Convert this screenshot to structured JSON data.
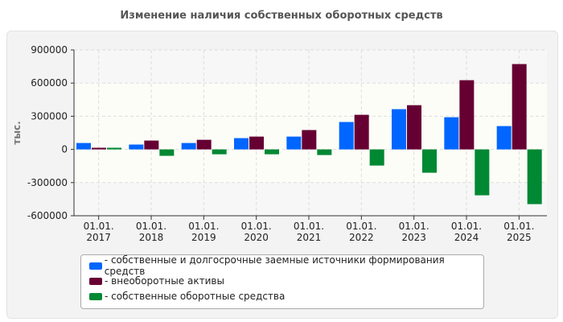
{
  "chart_data": {
    "type": "bar",
    "title": "Изменение наличия собственных оборотных средств",
    "ylabel": "тыс.",
    "categories": [
      "01.01.\n2017",
      "01.01.\n2018",
      "01.01.\n2019",
      "01.01.\n2020",
      "01.01.\n2021",
      "01.01.\n2022",
      "01.01.\n2023",
      "01.01.\n2024",
      "01.01.\n2025"
    ],
    "ylim": [
      -600000,
      900000
    ],
    "yticks": [
      900000,
      600000,
      300000,
      0,
      -300000,
      -600000
    ],
    "grid": true,
    "legend": "bottom",
    "series": [
      {
        "name": "- собственные и долгосрочные заемные источники формирования средств",
        "color": "#0066ff",
        "values": [
          58000,
          44000,
          58000,
          102000,
          116000,
          248000,
          364000,
          291000,
          211000
        ]
      },
      {
        "name": "- внеоборотные активы",
        "color": "#660033",
        "values": [
          15000,
          80000,
          87000,
          116000,
          175000,
          313000,
          400000,
          626000,
          772000
        ]
      },
      {
        "name": "- собственные оборотные средства",
        "color": "#008833",
        "values": [
          15000,
          -58000,
          -44000,
          -44000,
          -51000,
          -146000,
          -211000,
          -415000,
          -495000
        ]
      }
    ]
  }
}
